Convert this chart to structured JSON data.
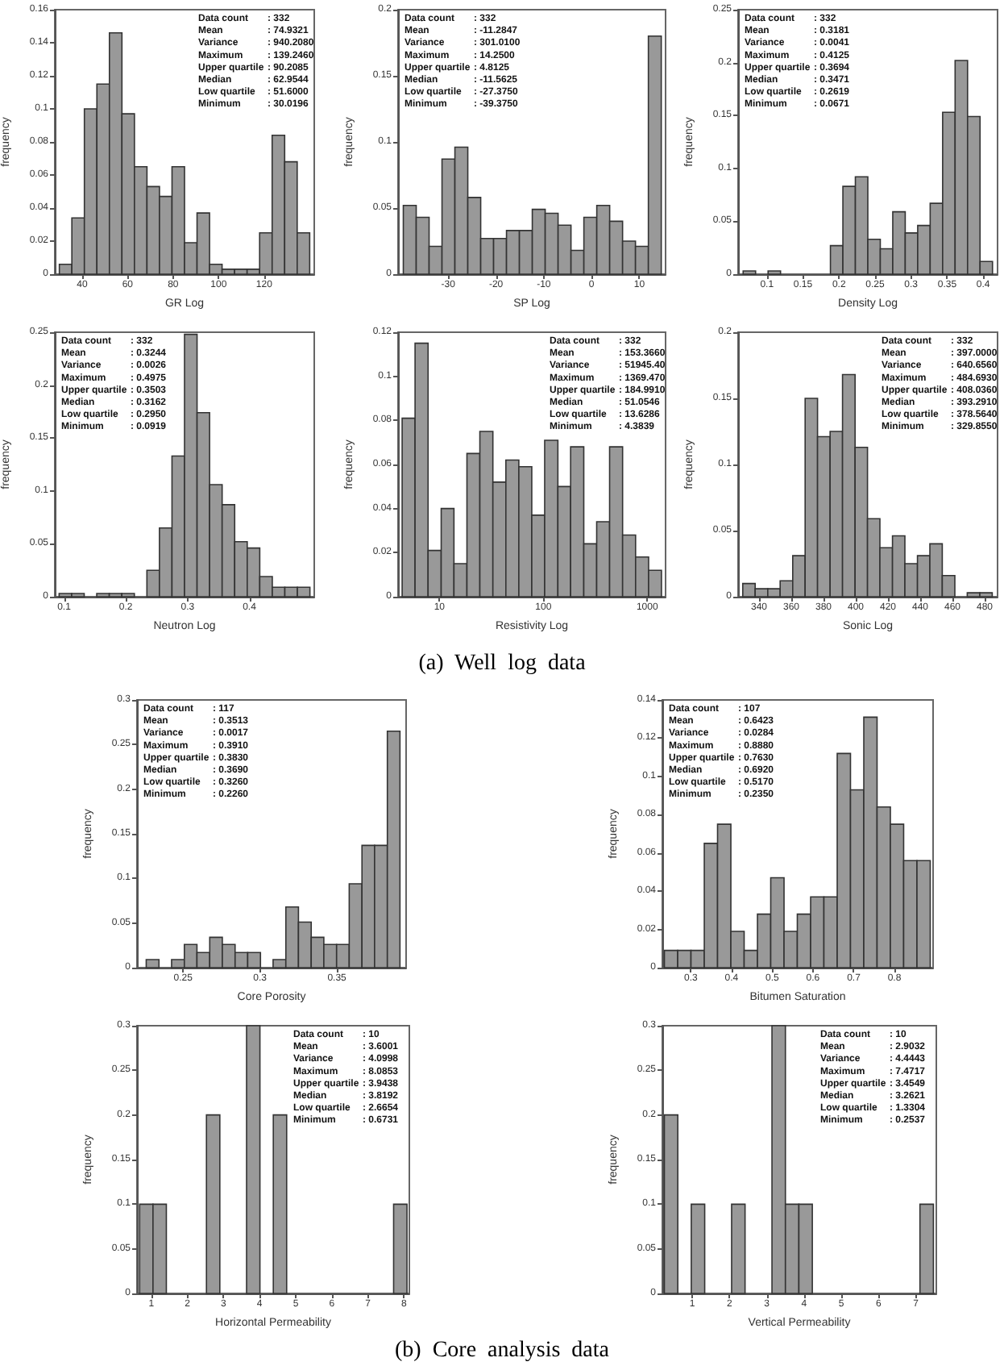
{
  "chart_data": [
    {
      "type": "histogram",
      "xlabel": "GR Log",
      "ylabel": "frequency",
      "color": "#999999",
      "xlim": [
        28,
        142
      ],
      "xticks": [
        40,
        60,
        80,
        100,
        120
      ],
      "ylim": [
        0,
        0.16
      ],
      "yticks": [
        0,
        0.02,
        0.04,
        0.06,
        0.08,
        0.1,
        0.12,
        0.14,
        0.16
      ],
      "bins": [
        30,
        35.5,
        41,
        46.5,
        52,
        57.5,
        63,
        68.5,
        74,
        79.5,
        85,
        90.5,
        96,
        101.5,
        107,
        112.5,
        118,
        123.5,
        129,
        134.5,
        140
      ],
      "values": [
        0.006,
        0.034,
        0.1,
        0.115,
        0.146,
        0.097,
        0.065,
        0.053,
        0.047,
        0.065,
        0.019,
        0.037,
        0.006,
        0.003,
        0.003,
        0.003,
        0.025,
        0.084,
        0.068,
        0.025
      ],
      "annotations": [
        "Data count : 332",
        "Mean : 74.9321",
        "Variance : 940.2080",
        "Maximum : 139.2460",
        "Upper quartile : 90.2085",
        "Median : 62.9544",
        "Low quartile : 51.6000",
        "Minimum : 30.0196"
      ]
    },
    {
      "type": "histogram",
      "xlabel": "SP Log",
      "ylabel": "frequency",
      "color": "#999999",
      "xlim": [
        -40.5,
        15.5
      ],
      "xticks": [
        -30,
        -20,
        -10,
        0,
        10
      ],
      "ylim": [
        0,
        0.2
      ],
      "yticks": [
        0,
        0.05,
        0.1,
        0.15,
        0.2
      ],
      "bins": [
        -39.4,
        -36.7,
        -34,
        -31.3,
        -28.6,
        -25.9,
        -23.2,
        -20.5,
        -17.8,
        -15.1,
        -12.4,
        -9.7,
        -7,
        -4.3,
        -1.6,
        1.1,
        3.8,
        6.5,
        9.2,
        11.9,
        14.6
      ],
      "values": [
        0.052,
        0.043,
        0.021,
        0.087,
        0.096,
        0.058,
        0.027,
        0.027,
        0.033,
        0.033,
        0.049,
        0.046,
        0.037,
        0.018,
        0.043,
        0.052,
        0.04,
        0.025,
        0.021,
        0.18
      ],
      "annotations": [
        "Data count : 332",
        "Mean : -11.2847",
        "Variance : 301.0100",
        "Maximum : 14.2500",
        "Upper quartile : 4.8125",
        "Median : -11.5625",
        "Low quartile : -27.3750",
        "Minimum : -39.3750"
      ]
    },
    {
      "type": "histogram",
      "xlabel": "Density Log",
      "ylabel": "frequency",
      "color": "#999999",
      "xlim": [
        0.06,
        0.42
      ],
      "xticks": [
        0.1,
        0.15,
        0.2,
        0.25,
        0.3,
        0.35,
        0.4
      ],
      "ylim": [
        0,
        0.25
      ],
      "yticks": [
        0,
        0.05,
        0.1,
        0.15,
        0.2,
        0.25
      ],
      "bins": [
        0.067,
        0.0843,
        0.1016,
        0.1189,
        0.1362,
        0.1535,
        0.1708,
        0.1881,
        0.2054,
        0.2227,
        0.24,
        0.2573,
        0.2746,
        0.2919,
        0.3092,
        0.3265,
        0.3438,
        0.3611,
        0.3784,
        0.3957,
        0.413
      ],
      "values": [
        0.003,
        0,
        0.003,
        0,
        0,
        0,
        0,
        0.027,
        0.083,
        0.092,
        0.033,
        0.024,
        0.059,
        0.039,
        0.046,
        0.067,
        0.153,
        0.202,
        0.149,
        0.012
      ],
      "annotations": [
        "Data count : 332",
        "Mean : 0.3181",
        "Variance : 0.0041",
        "Maximum : 0.4125",
        "Upper quartile : 0.3694",
        "Median : 0.3471",
        "Low quartile : 0.2619",
        "Minimum : 0.0671"
      ]
    },
    {
      "type": "histogram",
      "xlabel": "Neutron Log",
      "ylabel": "frequency",
      "color": "#999999",
      "xlim": [
        0.085,
        0.505
      ],
      "xticks": [
        0.1,
        0.2,
        0.3,
        0.4
      ],
      "ylim": [
        0,
        0.25
      ],
      "yticks": [
        0,
        0.05,
        0.1,
        0.15,
        0.2,
        0.25
      ],
      "bins": [
        0.092,
        0.1123,
        0.1326,
        0.1529,
        0.1732,
        0.1935,
        0.2138,
        0.2341,
        0.2544,
        0.2747,
        0.295,
        0.3153,
        0.3356,
        0.3559,
        0.3762,
        0.3965,
        0.4168,
        0.4371,
        0.4574,
        0.4777,
        0.498
      ],
      "values": [
        0.003,
        0.003,
        0,
        0.003,
        0.003,
        0.003,
        0,
        0.025,
        0.065,
        0.133,
        0.248,
        0.174,
        0.106,
        0.087,
        0.052,
        0.046,
        0.019,
        0.009,
        0.009,
        0.009
      ],
      "annotations": [
        "Data count : 332",
        "Mean : 0.3244",
        "Variance : 0.0026",
        "Maximum : 0.4975",
        "Upper quartile : 0.3503",
        "Median : 0.3162",
        "Low quartile : 0.2950",
        "Minimum : 0.0919"
      ]
    },
    {
      "type": "histogram",
      "log": "x",
      "xlabel": "Resistivity Log",
      "ylabel": "frequency",
      "color": "#999999",
      "xlim": [
        4,
        1500
      ],
      "xticks": [
        10,
        100,
        1000
      ],
      "ylim": [
        0,
        0.12
      ],
      "yticks": [
        0,
        0.02,
        0.04,
        0.06,
        0.08,
        0.1,
        0.12
      ],
      "bins": [
        4.38,
        5.83,
        7.78,
        10.4,
        13.8,
        18.4,
        24.5,
        32.7,
        43.6,
        58.1,
        77.4,
        103,
        138,
        183,
        245,
        326,
        434,
        579,
        772,
        1030,
        1370
      ],
      "values": [
        0.081,
        0.115,
        0.021,
        0.04,
        0.015,
        0.065,
        0.075,
        0.052,
        0.062,
        0.059,
        0.037,
        0.071,
        0.05,
        0.068,
        0.024,
        0.034,
        0.068,
        0.028,
        0.018,
        0.012
      ],
      "annotations": [
        "Data count : 332",
        "Mean : 153.3660",
        "Variance : 51945.40",
        "Maximum : 1369.470",
        "Upper quartile : 184.9910",
        "Median : 51.0546",
        "Low quartile : 13.6286",
        "Minimum : 4.3839"
      ]
    },
    {
      "type": "histogram",
      "xlabel": "Sonic Log",
      "ylabel": "frequency",
      "color": "#999999",
      "xlim": [
        327,
        488
      ],
      "xticks": [
        340,
        360,
        380,
        400,
        420,
        440,
        460,
        480
      ],
      "ylim": [
        0,
        0.2
      ],
      "yticks": [
        0,
        0.05,
        0.1,
        0.15,
        0.2
      ],
      "bins": [
        329.9,
        337.6,
        345.4,
        353.1,
        360.9,
        368.6,
        376.3,
        384.1,
        391.8,
        399.6,
        407.3,
        415,
        422.8,
        430.5,
        438.3,
        446,
        453.7,
        461.5,
        469.2,
        477,
        484.7
      ],
      "values": [
        0.01,
        0.006,
        0.006,
        0.012,
        0.031,
        0.15,
        0.121,
        0.125,
        0.168,
        0.113,
        0.059,
        0.037,
        0.046,
        0.025,
        0.031,
        0.04,
        0.016,
        0,
        0.003,
        0.003
      ],
      "annotations": [
        "Data count : 332",
        "Mean : 397.0000",
        "Variance : 640.6560",
        "Maximum : 484.6930",
        "Upper quartile : 408.0360",
        "Median : 393.2910",
        "Low quartile : 378.5640",
        "Minimum : 329.8550"
      ]
    },
    {
      "type": "other",
      "title": "(a)  Well  log  data"
    },
    {
      "type": "histogram",
      "xlabel": "Core Porosity",
      "ylabel": "frequency",
      "color": "#999999",
      "xlim": [
        0.22,
        0.395
      ],
      "xticks": [
        0.25,
        0.3,
        0.35
      ],
      "ylim": [
        0,
        0.3
      ],
      "yticks": [
        0,
        0.05,
        0.1,
        0.15,
        0.2,
        0.25,
        0.3
      ],
      "bins": [
        0.226,
        0.2343,
        0.2425,
        0.2508,
        0.259,
        0.2673,
        0.2755,
        0.2838,
        0.292,
        0.3003,
        0.3085,
        0.3168,
        0.325,
        0.3333,
        0.3415,
        0.3498,
        0.358,
        0.3663,
        0.3745,
        0.3828,
        0.391
      ],
      "values": [
        0.009,
        0,
        0.009,
        0.026,
        0.017,
        0.034,
        0.026,
        0.017,
        0.017,
        0,
        0.009,
        0.068,
        0.051,
        0.034,
        0.026,
        0.026,
        0.094,
        0.137,
        0.137,
        0.265
      ],
      "annotations": [
        "Data count : 117",
        "Mean : 0.3513",
        "Variance : 0.0017",
        "Maximum : 0.3910",
        "Upper quartile : 0.3830",
        "Median : 0.3690",
        "Low quartile : 0.3260",
        "Minimum : 0.2260"
      ]
    },
    {
      "type": "histogram",
      "xlabel": "Bitumen Saturation",
      "ylabel": "frequency",
      "color": "#999999",
      "xlim": [
        0.23,
        0.895
      ],
      "xticks": [
        0.3,
        0.4,
        0.5,
        0.6,
        0.7,
        0.8
      ],
      "ylim": [
        0,
        0.14
      ],
      "yticks": [
        0,
        0.02,
        0.04,
        0.06,
        0.08,
        0.1,
        0.12,
        0.14
      ],
      "bins": [
        0.235,
        0.2677,
        0.3003,
        0.333,
        0.3656,
        0.3983,
        0.4309,
        0.4636,
        0.4962,
        0.5289,
        0.5615,
        0.5942,
        0.6268,
        0.6595,
        0.6921,
        0.7248,
        0.7574,
        0.7901,
        0.8227,
        0.8554,
        0.888
      ],
      "values": [
        0.009,
        0.009,
        0.009,
        0.065,
        0.075,
        0.019,
        0.009,
        0.028,
        0.047,
        0.019,
        0.028,
        0.037,
        0.037,
        0.112,
        0.093,
        0.131,
        0.084,
        0.075,
        0.056,
        0.056
      ],
      "annotations": [
        "Data count : 107",
        "Mean : 0.6423",
        "Variance : 0.0284",
        "Maximum : 0.8880",
        "Upper quartile : 0.7630",
        "Median : 0.6920",
        "Low quartile : 0.5170",
        "Minimum : 0.2350"
      ]
    },
    {
      "type": "histogram",
      "xlabel": "Horizontal Permeability",
      "ylabel": "frequency",
      "color": "#999999",
      "xlim": [
        0.6,
        8.15
      ],
      "xticks": [
        1,
        2,
        3,
        4,
        5,
        6,
        7,
        8
      ],
      "ylim": [
        0,
        0.3
      ],
      "yticks": [
        0,
        0.05,
        0.1,
        0.15,
        0.2,
        0.25,
        0.3
      ],
      "bins": [
        0.673,
        1.0436,
        1.4142,
        1.7848,
        2.1554,
        2.526,
        2.8966,
        3.2672,
        3.6378,
        4.0084,
        4.379,
        4.7496,
        5.1202,
        5.4908,
        5.8614,
        6.232,
        6.6026,
        6.9732,
        7.3438,
        7.7144,
        8.085
      ],
      "values": [
        0.1,
        0.1,
        0,
        0,
        0,
        0.2,
        0,
        0,
        0.3,
        0,
        0.2,
        0,
        0,
        0,
        0,
        0,
        0,
        0,
        0,
        0.1
      ],
      "annotations": [
        "Data count : 10",
        "Mean : 3.6001",
        "Variance : 4.0998",
        "Maximum : 8.0853",
        "Upper quartile : 3.9438",
        "Median : 3.8192",
        "Low quartile : 2.6654",
        "Minimum : 0.6731"
      ]
    },
    {
      "type": "histogram",
      "xlabel": "Vertical Permeability",
      "ylabel": "frequency",
      "color": "#999999",
      "xlim": [
        0.2,
        7.55
      ],
      "xticks": [
        1,
        2,
        3,
        4,
        5,
        6,
        7
      ],
      "ylim": [
        0,
        0.3
      ],
      "yticks": [
        0,
        0.05,
        0.1,
        0.15,
        0.2,
        0.25,
        0.3
      ],
      "bins": [
        0.254,
        0.6146,
        0.9755,
        1.3364,
        1.6973,
        2.0582,
        2.4191,
        2.78,
        3.1409,
        3.5018,
        3.8627,
        4.2236,
        4.5845,
        4.9454,
        5.3063,
        5.6672,
        6.0281,
        6.389,
        6.7499,
        7.1108,
        7.472
      ],
      "values": [
        0.2,
        0,
        0.1,
        0,
        0,
        0.1,
        0,
        0,
        0.3,
        0.1,
        0.1,
        0,
        0,
        0,
        0,
        0,
        0,
        0,
        0,
        0.1
      ],
      "annotations": [
        "Data count : 10",
        "Mean : 2.9032",
        "Variance : 4.4443",
        "Maximum : 7.4717",
        "Upper quartile : 3.4549",
        "Median : 3.2621",
        "Low quartile : 1.3304",
        "Minimum : 0.2537"
      ]
    },
    {
      "type": "other",
      "title": "(b)  Core  analysis  data"
    }
  ]
}
